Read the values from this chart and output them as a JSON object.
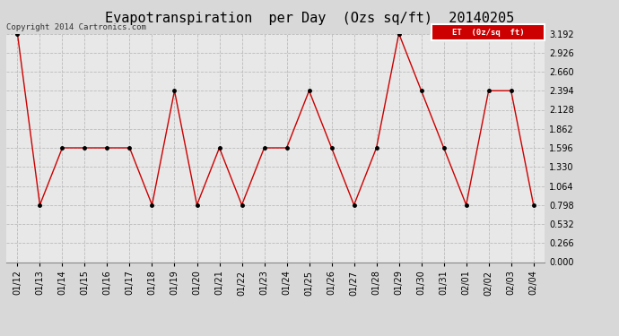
{
  "title": "Evapotranspiration  per Day  (Ozs sq/ft)  20140205",
  "copyright": "Copyright 2014 Cartronics.com",
  "legend_label": "ET  (0z/sq  ft)",
  "legend_bg": "#cc0000",
  "legend_text_color": "#ffffff",
  "dates": [
    "01/12",
    "01/13",
    "01/14",
    "01/15",
    "01/16",
    "01/17",
    "01/18",
    "01/19",
    "01/20",
    "01/21",
    "01/22",
    "01/23",
    "01/24",
    "01/25",
    "01/26",
    "01/27",
    "01/28",
    "01/29",
    "01/30",
    "01/31",
    "02/01",
    "02/02",
    "02/03",
    "02/04"
  ],
  "values": [
    3.192,
    0.798,
    1.596,
    1.596,
    1.596,
    1.596,
    0.798,
    2.394,
    0.798,
    1.596,
    0.798,
    1.596,
    1.596,
    2.394,
    1.596,
    0.798,
    1.596,
    3.192,
    2.394,
    1.596,
    0.798,
    2.394,
    2.394,
    0.798
  ],
  "line_color": "#cc0000",
  "marker_color": "#000000",
  "ylim": [
    0.0,
    3.192
  ],
  "yticks": [
    0.0,
    0.266,
    0.532,
    0.798,
    1.064,
    1.33,
    1.596,
    1.862,
    2.128,
    2.394,
    2.66,
    2.926,
    3.192
  ],
  "bg_color": "#d8d8d8",
  "plot_bg": "#e8e8e8",
  "grid_color": "#bbbbbb",
  "title_fontsize": 11,
  "tick_fontsize": 7,
  "copyright_fontsize": 6.5
}
